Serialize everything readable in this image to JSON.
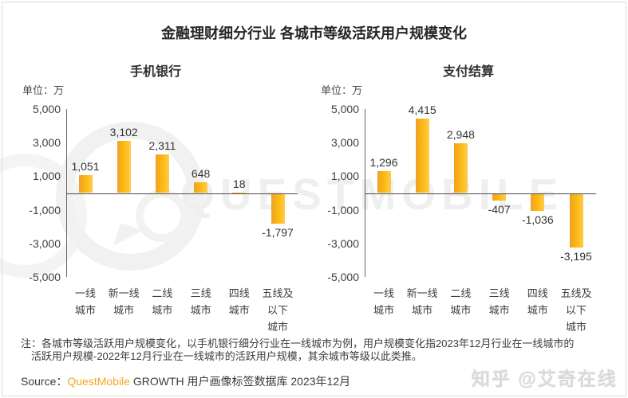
{
  "title": "金融理财细分行业 各城市等级活跃用户规模变化",
  "watermarks": {
    "brand_text": "QUESTMOBILE",
    "zhihu": "知乎 @艾奇在线"
  },
  "note_lines": [
    "注：各城市等级活跃用户规模变化，以手机银行细分行业在一线城市为例，用户规模变化指2023年12月行业在一线城市的",
    "活跃用户规模-2022年12月行业在一线城市的活跃用户规模，其余城市等级以此类推。"
  ],
  "source": {
    "prefix": "Source：",
    "brand": "QuestMobile",
    "suffix": " GROWTH 用户画像标签数据库 2023年12月"
  },
  "chart_data": [
    {
      "type": "bar",
      "title": "手机银行",
      "unit_label": "单位：万",
      "categories": [
        "一线城市",
        "新一线城市",
        "二线城市",
        "三线城市",
        "四线城市",
        "五线及以下城市"
      ],
      "category_lines": [
        [
          "一线",
          "城市"
        ],
        [
          "新一线",
          "城市"
        ],
        [
          "二线",
          "城市"
        ],
        [
          "三线",
          "城市"
        ],
        [
          "四线",
          "城市"
        ],
        [
          "五线及",
          "以下",
          "城市"
        ]
      ],
      "values": [
        1051,
        3102,
        2311,
        648,
        18,
        -1797
      ],
      "value_labels": [
        "1,051",
        "3,102",
        "2,311",
        "648",
        "18",
        "-1,797"
      ],
      "ylim": [
        -5000,
        5000
      ],
      "yticks": [
        5000,
        3000,
        1000,
        -1000,
        -3000,
        -5000
      ],
      "ytick_labels": [
        "5,000",
        "3,000",
        "1,000",
        "-1,000",
        "-3,000",
        "-5,000"
      ],
      "grid": false,
      "legend": false,
      "bar_color_gradient": [
        "#EFA12A",
        "#FBB70F",
        "#FFCC49"
      ]
    },
    {
      "type": "bar",
      "title": "支付结算",
      "unit_label": "单位：万",
      "categories": [
        "一线城市",
        "新一线城市",
        "二线城市",
        "三线城市",
        "四线城市",
        "五线及以下城市"
      ],
      "category_lines": [
        [
          "一线",
          "城市"
        ],
        [
          "新一线",
          "城市"
        ],
        [
          "二线",
          "城市"
        ],
        [
          "三线",
          "城市"
        ],
        [
          "四线",
          "城市"
        ],
        [
          "五线及",
          "以下",
          "城市"
        ]
      ],
      "values": [
        1296,
        4415,
        2948,
        -407,
        -1036,
        -3195
      ],
      "value_labels": [
        "1,296",
        "4,415",
        "2,948",
        "-407",
        "-1,036",
        "-3,195"
      ],
      "ylim": [
        -5000,
        5000
      ],
      "yticks": [
        5000,
        3000,
        1000,
        -1000,
        -3000,
        -5000
      ],
      "ytick_labels": [
        "5,000",
        "3,000",
        "1,000",
        "-1,000",
        "-3,000",
        "-5,000"
      ],
      "grid": false,
      "legend": false,
      "bar_color_gradient": [
        "#EFA12A",
        "#FBB70F",
        "#FFCC49"
      ]
    }
  ]
}
